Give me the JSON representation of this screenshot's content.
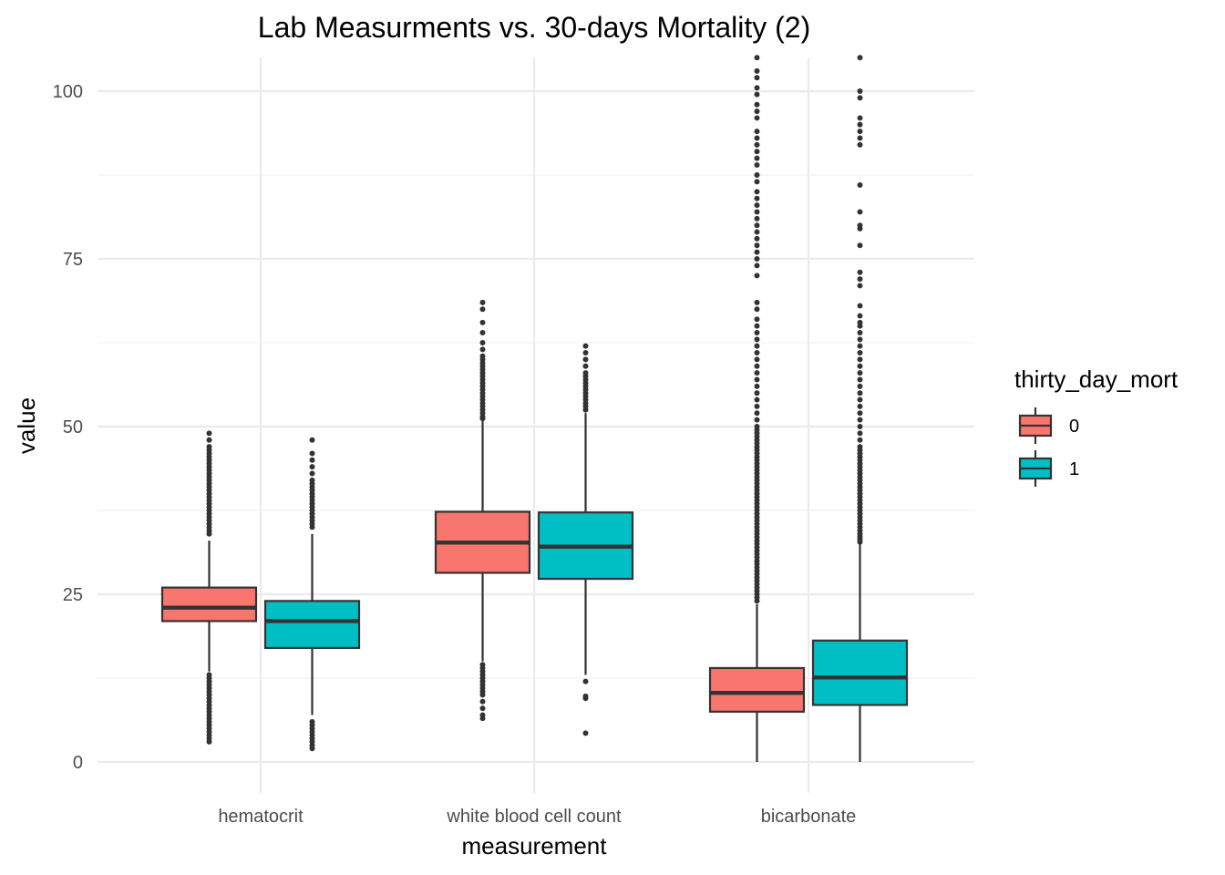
{
  "chart_data": {
    "type": "boxplot",
    "title": "Lab Measurments vs. 30-days Mortality (2)",
    "xlabel": "measurement",
    "ylabel": "value",
    "ylim": [
      -4.5,
      105
    ],
    "yticks": [
      0,
      25,
      50,
      75,
      100
    ],
    "grid": true,
    "categories": [
      "hematocrit",
      "white blood cell count",
      "bicarbonate"
    ],
    "legend": {
      "title": "thirty_day_mort",
      "position": "right",
      "entries": [
        {
          "label": "0",
          "color": "#F8766D"
        },
        {
          "label": "1",
          "color": "#00BFC4"
        }
      ]
    },
    "series": [
      {
        "name": "0",
        "color": "#F8766D",
        "boxes": [
          {
            "category": "hematocrit",
            "min": 13.5,
            "q1": 21,
            "median": 23,
            "q3": 26,
            "max": 33,
            "outliers": [
              3,
              3.5,
              4,
              4.5,
              5,
              5.5,
              6,
              6.5,
              7,
              7.5,
              8,
              8.5,
              9,
              9.5,
              10,
              10.5,
              11,
              11.5,
              12,
              12.5,
              13,
              34,
              34.5,
              35,
              35.5,
              36,
              36.5,
              37,
              37.5,
              38,
              38.5,
              39,
              39.5,
              40,
              40.5,
              41,
              41.5,
              42,
              42.5,
              43,
              43.5,
              44,
              44.5,
              45,
              45.5,
              46,
              46.5,
              47,
              48,
              49
            ]
          },
          {
            "category": "white blood cell count",
            "min": 15,
            "q1": 28.2,
            "median": 32.7,
            "q3": 37.3,
            "max": 51,
            "outliers": [
              6.5,
              7,
              8,
              9,
              10,
              10.5,
              11,
              11.5,
              12,
              12.5,
              13,
              13.5,
              14,
              14.5,
              51.2,
              51.5,
              52,
              52.5,
              53,
              53.5,
              54,
              54.5,
              55,
              55.5,
              56,
              56.5,
              57,
              57.5,
              58,
              58.5,
              59,
              59.5,
              60,
              60.5,
              61.5,
              62.5,
              64,
              65.5,
              67.5,
              68.5
            ]
          },
          {
            "category": "bicarbonate",
            "min": 0,
            "q1": 7.5,
            "median": 10.3,
            "q3": 14,
            "max": 23.5,
            "outliers": [
              24,
              24.5,
              25,
              25.5,
              26,
              26.5,
              27,
              27.5,
              28,
              28.5,
              29,
              29.5,
              30,
              30.5,
              31,
              31.5,
              32,
              32.5,
              33,
              33.5,
              34,
              34.5,
              35,
              35.5,
              36,
              36.5,
              37,
              37.5,
              38,
              38.5,
              39,
              39.5,
              40,
              40.5,
              41,
              41.5,
              42,
              42.5,
              43,
              43.5,
              44,
              44.5,
              45,
              45.5,
              46,
              46.5,
              47,
              47.5,
              48,
              48.5,
              49,
              49.5,
              50,
              51,
              52,
              53,
              54,
              55,
              56,
              57,
              58,
              59,
              60,
              61,
              62,
              63,
              64,
              65,
              66,
              67.5,
              68.5,
              72.5,
              74,
              75,
              76,
              77,
              78,
              79,
              80,
              81,
              82,
              83,
              84,
              85,
              86.5,
              87.5,
              89,
              90,
              91,
              92,
              93,
              94,
              96,
              97,
              98,
              99.5,
              100.5,
              102,
              103,
              105
            ]
          }
        ]
      },
      {
        "name": "1",
        "color": "#00BFC4",
        "boxes": [
          {
            "category": "hematocrit",
            "min": 7,
            "q1": 17,
            "median": 21,
            "q3": 24,
            "max": 34,
            "outliers": [
              2,
              2.5,
              3,
              3.5,
              4,
              4.5,
              5,
              5.5,
              6,
              35,
              35.5,
              36,
              36.5,
              37,
              37.5,
              38,
              38.5,
              39,
              39.5,
              40,
              40.5,
              41,
              41.5,
              42,
              43,
              44,
              45,
              46,
              48
            ]
          },
          {
            "category": "white blood cell count",
            "min": 13,
            "q1": 27.3,
            "median": 32.1,
            "q3": 37.2,
            "max": 52,
            "outliers": [
              4.3,
              9.5,
              9.8,
              12,
              52.5,
              53,
              53.5,
              54,
              54.5,
              55,
              55.5,
              56,
              56.5,
              57,
              57.5,
              58,
              59,
              60,
              61,
              62
            ]
          },
          {
            "category": "bicarbonate",
            "min": 0,
            "q1": 8.5,
            "median": 12.6,
            "q3": 18.1,
            "max": 32.5,
            "outliers": [
              32.8,
              33.2,
              33.6,
              34,
              34.5,
              35,
              35.5,
              36,
              36.5,
              37,
              37.5,
              38,
              38.5,
              39,
              39.5,
              40,
              40.5,
              41,
              41.5,
              42,
              42.5,
              43,
              43.5,
              44,
              44.5,
              45,
              45.5,
              46,
              46.5,
              47,
              48,
              49,
              50,
              51,
              52,
              53,
              54,
              55,
              56,
              57,
              58,
              59,
              60,
              61,
              62,
              63,
              64,
              65,
              65.5,
              66.5,
              68,
              71,
              72,
              73,
              77,
              79.5,
              80,
              82,
              86,
              92,
              93,
              94,
              95,
              96,
              99,
              100,
              105
            ]
          }
        ]
      }
    ]
  }
}
